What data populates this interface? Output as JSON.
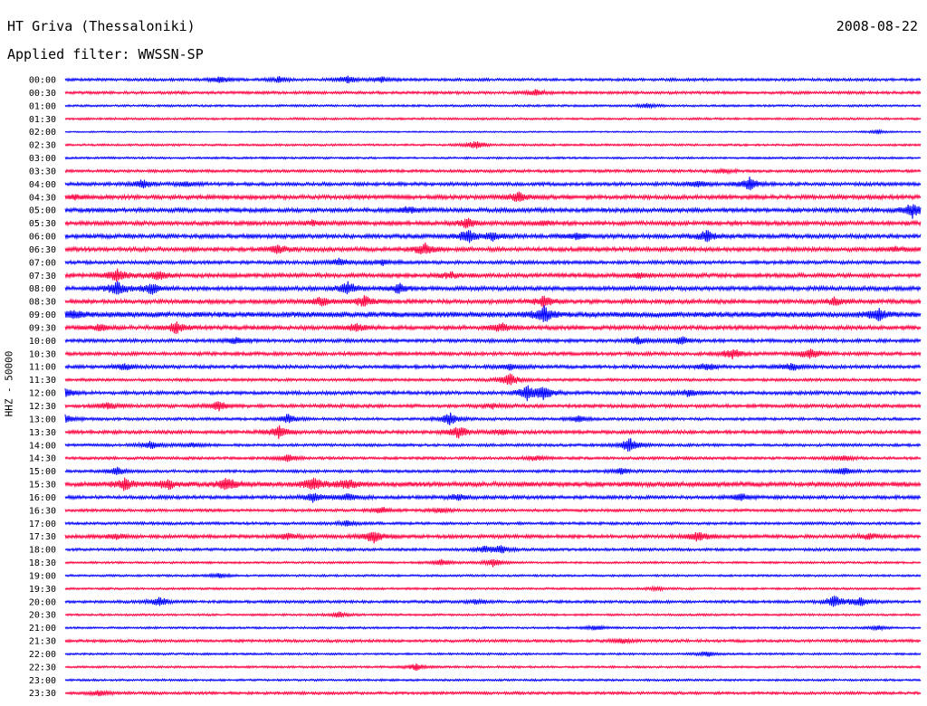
{
  "header": {
    "station": "HT Griva (Thessaloniki)",
    "filter": "Applied filter: WWSSN-SP",
    "date": "2008-08-22"
  },
  "chart_data": {
    "type": "line",
    "title": "HT Griva (Thessaloniki)",
    "subtitle": "Applied filter: WWSSN-SP",
    "date": "2008-08-22",
    "ylabel": "HHZ - 50000",
    "trace_colors": [
      "#0000ff",
      "#ff0040"
    ],
    "rows": [
      {
        "label": "00:00",
        "amp": 2,
        "events": [
          [
            0.18,
            5
          ],
          [
            0.25,
            4
          ],
          [
            0.33,
            6
          ],
          [
            0.37,
            4
          ]
        ]
      },
      {
        "label": "00:30",
        "amp": 2,
        "events": [
          [
            0.55,
            5
          ]
        ]
      },
      {
        "label": "01:00",
        "amp": 1.5,
        "events": [
          [
            0.68,
            4
          ]
        ]
      },
      {
        "label": "01:30",
        "amp": 1.5,
        "events": []
      },
      {
        "label": "02:00",
        "amp": 1,
        "events": [
          [
            0.95,
            3
          ]
        ],
        "gap": [
          0.17,
          0.19
        ]
      },
      {
        "label": "02:30",
        "amp": 1.5,
        "events": [
          [
            0.48,
            7
          ]
        ]
      },
      {
        "label": "03:00",
        "amp": 1.5,
        "events": []
      },
      {
        "label": "03:30",
        "amp": 2,
        "events": [
          [
            0.77,
            3
          ]
        ]
      },
      {
        "label": "04:00",
        "amp": 2.5,
        "events": [
          [
            0.09,
            6
          ],
          [
            0.14,
            4
          ],
          [
            0.74,
            5
          ],
          [
            0.8,
            10
          ]
        ]
      },
      {
        "label": "04:30",
        "amp": 3,
        "events": [
          [
            0.53,
            8
          ],
          [
            0.01,
            3
          ]
        ]
      },
      {
        "label": "05:00",
        "amp": 3,
        "events": [
          [
            0.4,
            5
          ],
          [
            0.99,
            12
          ]
        ]
      },
      {
        "label": "05:30",
        "amp": 3,
        "events": [
          [
            0.29,
            4
          ],
          [
            0.47,
            8
          ],
          [
            0.56,
            3
          ]
        ]
      },
      {
        "label": "06:00",
        "amp": 3,
        "events": [
          [
            0.47,
            10
          ],
          [
            0.5,
            6
          ],
          [
            0.6,
            5
          ],
          [
            0.75,
            9
          ]
        ]
      },
      {
        "label": "06:30",
        "amp": 3,
        "events": [
          [
            0.42,
            10
          ],
          [
            0.25,
            6
          ],
          [
            0.97,
            3
          ]
        ]
      },
      {
        "label": "07:00",
        "amp": 2.5,
        "events": [
          [
            0.32,
            6
          ],
          [
            0.37,
            4
          ]
        ]
      },
      {
        "label": "07:30",
        "amp": 3,
        "events": [
          [
            0.06,
            11
          ],
          [
            0.11,
            8
          ],
          [
            0.45,
            5
          ],
          [
            0.67,
            4
          ]
        ]
      },
      {
        "label": "08:00",
        "amp": 3,
        "events": [
          [
            0.06,
            12
          ],
          [
            0.1,
            10
          ],
          [
            0.33,
            10
          ],
          [
            0.39,
            8
          ]
        ]
      },
      {
        "label": "08:30",
        "amp": 3,
        "events": [
          [
            0.3,
            7
          ],
          [
            0.35,
            9
          ],
          [
            0.56,
            9
          ],
          [
            0.9,
            6
          ]
        ]
      },
      {
        "label": "09:00",
        "amp": 4,
        "events": [
          [
            0.01,
            6
          ],
          [
            0.56,
            12
          ],
          [
            0.95,
            10
          ]
        ]
      },
      {
        "label": "09:30",
        "amp": 3,
        "events": [
          [
            0.04,
            5
          ],
          [
            0.13,
            9
          ],
          [
            0.34,
            6
          ],
          [
            0.51,
            7
          ]
        ]
      },
      {
        "label": "10:00",
        "amp": 2.5,
        "events": [
          [
            0.2,
            5
          ],
          [
            0.67,
            6
          ],
          [
            0.72,
            6
          ]
        ]
      },
      {
        "label": "10:30",
        "amp": 2.5,
        "events": [
          [
            0.78,
            8
          ],
          [
            0.87,
            10
          ]
        ]
      },
      {
        "label": "11:00",
        "amp": 2.5,
        "events": [
          [
            0.07,
            5
          ],
          [
            0.52,
            4
          ],
          [
            0.75,
            6
          ],
          [
            0.85,
            6
          ]
        ]
      },
      {
        "label": "11:30",
        "amp": 2,
        "events": [
          [
            0.52,
            11
          ]
        ]
      },
      {
        "label": "12:00",
        "amp": 2.5,
        "events": [
          [
            0.0,
            6
          ],
          [
            0.54,
            11
          ],
          [
            0.56,
            10
          ],
          [
            0.73,
            6
          ]
        ]
      },
      {
        "label": "12:30",
        "amp": 2.5,
        "events": [
          [
            0.05,
            5
          ],
          [
            0.18,
            8
          ],
          [
            0.5,
            4
          ]
        ]
      },
      {
        "label": "13:00",
        "amp": 2,
        "events": [
          [
            0.0,
            7
          ],
          [
            0.26,
            7
          ],
          [
            0.45,
            10
          ],
          [
            0.6,
            5
          ]
        ]
      },
      {
        "label": "13:30",
        "amp": 2.5,
        "events": [
          [
            0.25,
            10
          ],
          [
            0.46,
            10
          ],
          [
            0.51,
            5
          ]
        ]
      },
      {
        "label": "14:00",
        "amp": 2,
        "events": [
          [
            0.1,
            6
          ],
          [
            0.15,
            4
          ],
          [
            0.66,
            12
          ]
        ]
      },
      {
        "label": "14:30",
        "amp": 2,
        "events": [
          [
            0.26,
            6
          ],
          [
            0.55,
            4
          ],
          [
            0.91,
            4
          ]
        ]
      },
      {
        "label": "15:00",
        "amp": 2,
        "events": [
          [
            0.06,
            6
          ],
          [
            0.65,
            5
          ],
          [
            0.91,
            6
          ]
        ]
      },
      {
        "label": "15:30",
        "amp": 3.5,
        "events": [
          [
            0.07,
            9
          ],
          [
            0.12,
            8
          ],
          [
            0.19,
            10
          ],
          [
            0.29,
            10
          ],
          [
            0.33,
            8
          ]
        ]
      },
      {
        "label": "16:00",
        "amp": 2.5,
        "events": [
          [
            0.29,
            8
          ],
          [
            0.33,
            7
          ],
          [
            0.46,
            5
          ],
          [
            0.79,
            5
          ]
        ]
      },
      {
        "label": "16:30",
        "amp": 2,
        "events": [
          [
            0.37,
            5
          ],
          [
            0.44,
            4
          ]
        ]
      },
      {
        "label": "17:00",
        "amp": 2,
        "events": [
          [
            0.33,
            4
          ]
        ]
      },
      {
        "label": "17:30",
        "amp": 2.5,
        "events": [
          [
            0.06,
            5
          ],
          [
            0.26,
            5
          ],
          [
            0.36,
            11
          ],
          [
            0.74,
            9
          ],
          [
            0.94,
            5
          ]
        ]
      },
      {
        "label": "18:00",
        "amp": 2,
        "events": [
          [
            0.49,
            5
          ],
          [
            0.51,
            6
          ]
        ]
      },
      {
        "label": "18:30",
        "amp": 1.5,
        "events": [
          [
            0.44,
            5
          ],
          [
            0.5,
            7
          ]
        ]
      },
      {
        "label": "19:00",
        "amp": 1.5,
        "events": [
          [
            0.18,
            4
          ]
        ]
      },
      {
        "label": "19:30",
        "amp": 1.5,
        "events": [
          [
            0.69,
            3
          ]
        ]
      },
      {
        "label": "20:00",
        "amp": 2,
        "events": [
          [
            0.11,
            7
          ],
          [
            0.48,
            3
          ],
          [
            0.9,
            10
          ],
          [
            0.93,
            7
          ]
        ]
      },
      {
        "label": "20:30",
        "amp": 1.5,
        "events": [
          [
            0.32,
            4
          ]
        ]
      },
      {
        "label": "21:00",
        "amp": 1.5,
        "events": [
          [
            0.62,
            4
          ],
          [
            0.95,
            3
          ]
        ]
      },
      {
        "label": "21:30",
        "amp": 2,
        "events": [
          [
            0.65,
            4
          ]
        ]
      },
      {
        "label": "22:00",
        "amp": 1.5,
        "events": [
          [
            0.75,
            4
          ]
        ]
      },
      {
        "label": "22:30",
        "amp": 1.5,
        "events": [
          [
            0.41,
            5
          ]
        ]
      },
      {
        "label": "23:00",
        "amp": 1.5,
        "events": []
      },
      {
        "label": "23:30",
        "amp": 2,
        "events": [
          [
            0.04,
            4
          ]
        ]
      }
    ]
  }
}
